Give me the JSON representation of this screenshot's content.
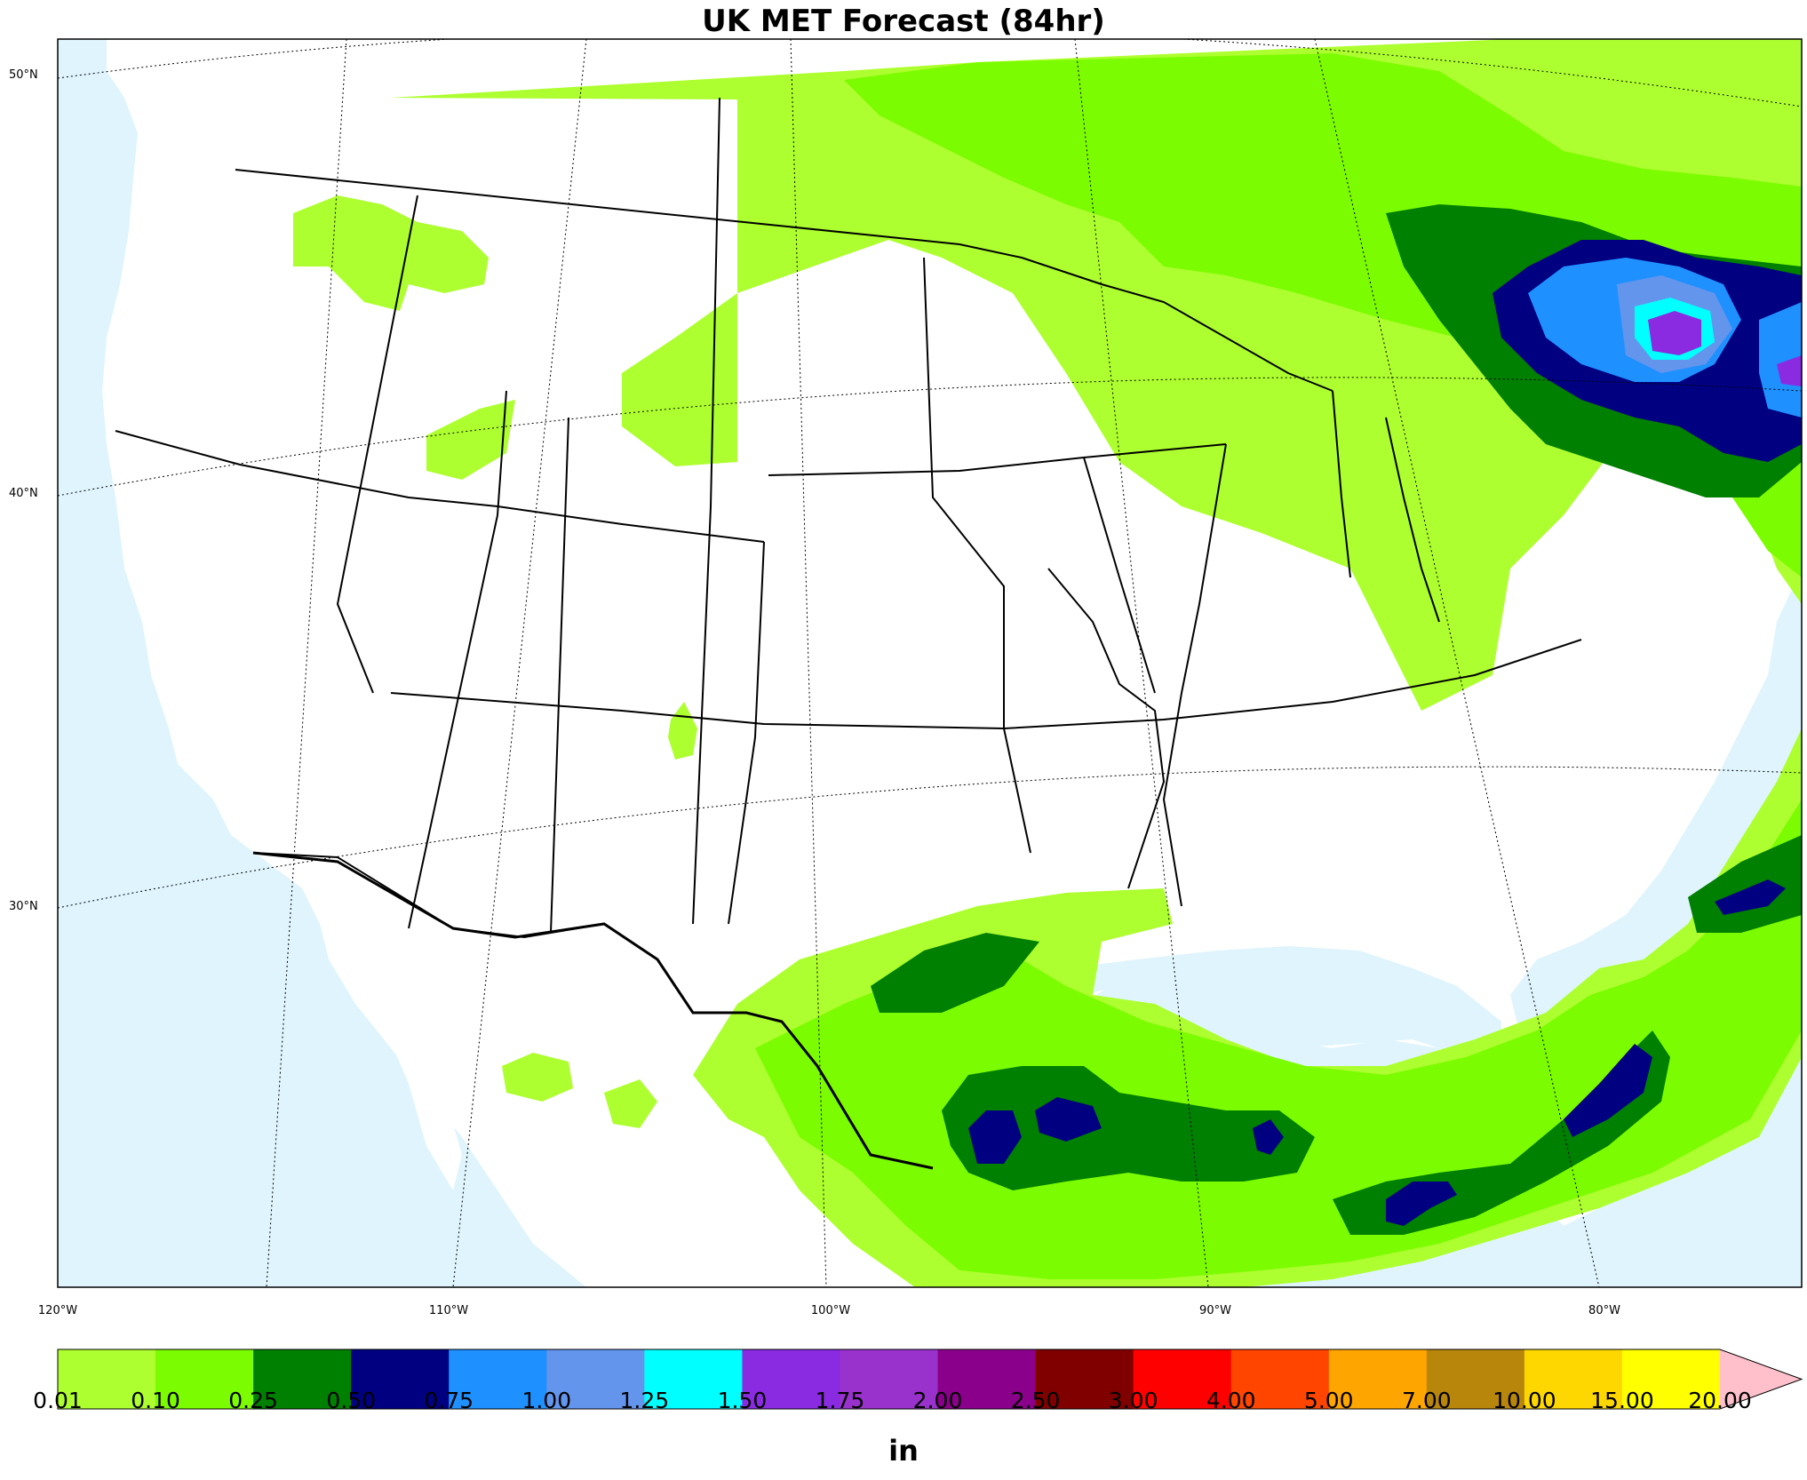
{
  "title": "UK MET Forecast (84hr)",
  "latitude_labels": [
    "50°N",
    "40°N",
    "30°N"
  ],
  "longitude_labels": [
    "120°W",
    "110°W",
    "100°W",
    "90°W",
    "80°W"
  ],
  "colors": {
    "ocean": "#dff4fc",
    "land": "#ffffff",
    "border": "#000000"
  },
  "legend": {
    "unit": "in",
    "ticks": [
      "0.01",
      "0.10",
      "0.25",
      "0.50",
      "0.75",
      "1.00",
      "1.25",
      "1.50",
      "1.75",
      "2.00",
      "2.50",
      "3.00",
      "4.00",
      "5.00",
      "7.00",
      "10.00",
      "15.00",
      "20.00"
    ],
    "colors": [
      "#adff2f",
      "#7cfc00",
      "#008000",
      "#000080",
      "#1e90ff",
      "#6495ed",
      "#00ffff",
      "#8a2be2",
      "#9932cc",
      "#8b008b",
      "#800000",
      "#ff0000",
      "#ff4500",
      "#ffa500",
      "#b8860b",
      "#ffd700",
      "#ffff00"
    ],
    "extend_color": "#ffc0cb"
  }
}
